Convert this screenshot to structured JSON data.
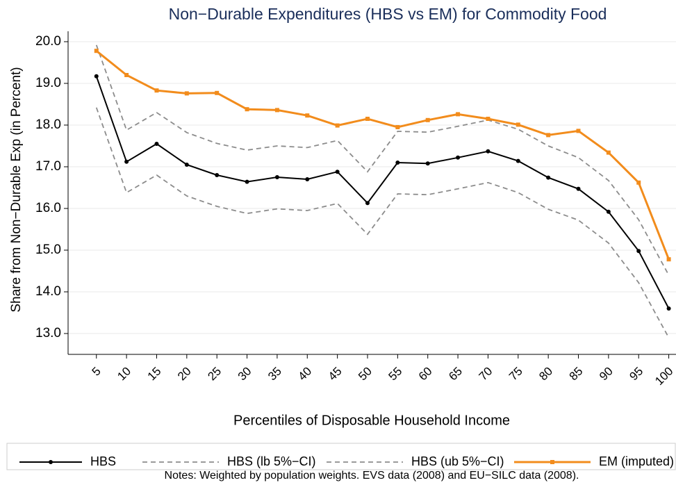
{
  "chart_data": {
    "type": "line",
    "title": "Non−Durable Expenditures (HBS vs EM) for Commodity Food",
    "x_label": "Percentiles of Disposable Household Income",
    "y_label": "Share from Non−Durable Exp (in Percent)",
    "note": "Notes: Weighted by population weights. EVS data (2008) and EU−SILC data (2008).",
    "x": [
      5,
      10,
      15,
      20,
      25,
      30,
      35,
      40,
      45,
      50,
      55,
      60,
      65,
      70,
      75,
      80,
      85,
      90,
      95,
      100
    ],
    "xlim": [
      0.3,
      101.2
    ],
    "xticks": [
      5,
      10,
      15,
      20,
      25,
      30,
      35,
      40,
      45,
      50,
      55,
      60,
      65,
      70,
      75,
      80,
      85,
      90,
      95,
      100
    ],
    "ylim": [
      12.5,
      20.25
    ],
    "yticks": [
      {
        "value": 13,
        "label": "13.0"
      },
      {
        "value": 14,
        "label": "14.0"
      },
      {
        "value": 15,
        "label": "15.0"
      },
      {
        "value": 16,
        "label": "16.0"
      },
      {
        "value": 17,
        "label": "17.0"
      },
      {
        "value": 18,
        "label": "18.0"
      },
      {
        "value": 19,
        "label": "19.0"
      },
      {
        "value": 20,
        "label": "20.0"
      }
    ],
    "grid": true,
    "legend": "bottom",
    "series": [
      {
        "name": "HBS",
        "color": "#000000",
        "dash": false,
        "marker": "circle",
        "values": [
          19.17,
          17.12,
          17.55,
          17.05,
          16.8,
          16.64,
          16.75,
          16.7,
          16.88,
          16.13,
          17.1,
          17.08,
          17.22,
          17.37,
          17.14,
          16.74,
          16.47,
          15.92,
          14.98,
          13.6
        ]
      },
      {
        "name": "HBS (lb 5%−CI)",
        "color": "#8c8c8c",
        "dash": true,
        "marker": null,
        "values": [
          18.42,
          16.38,
          16.8,
          16.3,
          16.05,
          15.88,
          15.99,
          15.95,
          16.12,
          15.38,
          16.35,
          16.33,
          16.47,
          16.62,
          16.38,
          15.98,
          15.72,
          15.17,
          14.22,
          12.9
        ]
      },
      {
        "name": "HBS (ub 5%−CI)",
        "color": "#8c8c8c",
        "dash": true,
        "marker": null,
        "values": [
          19.92,
          17.88,
          18.3,
          17.82,
          17.56,
          17.4,
          17.5,
          17.46,
          17.63,
          16.88,
          17.85,
          17.83,
          17.97,
          18.12,
          17.9,
          17.5,
          17.22,
          16.67,
          15.73,
          14.4
        ]
      },
      {
        "name": "EM (imputed)",
        "color": "#f28c1c",
        "dash": false,
        "marker": "square",
        "values": [
          19.78,
          19.2,
          18.83,
          18.76,
          18.77,
          18.38,
          18.36,
          18.23,
          17.99,
          18.15,
          17.95,
          18.12,
          18.26,
          18.15,
          18.01,
          17.76,
          17.86,
          17.34,
          16.62,
          14.78
        ]
      }
    ]
  }
}
